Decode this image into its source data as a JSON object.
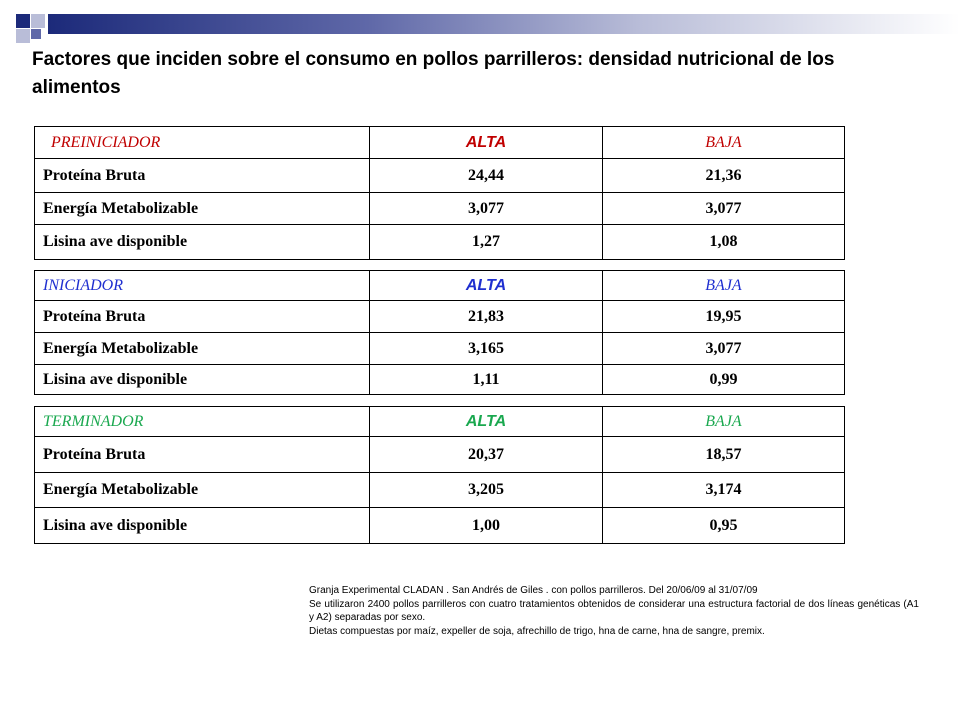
{
  "colors": {
    "deco_dark": "#1c2a7a",
    "deco_mid": "#5f68a8",
    "deco_light": "#b9bdd8",
    "preiniciador": "#c00000",
    "iniciador": "#1f2fd0",
    "terminador": "#1aa84f"
  },
  "title": "Factores que inciden sobre el consumo en pollos parrilleros: densidad nutricional de los alimentos",
  "tables": [
    {
      "stage": "PREINICIADOR",
      "alta": "ALTA",
      "baja": "BAJA",
      "rows": [
        {
          "label": "Proteína Bruta",
          "alta": "24,44",
          "baja": "21,36"
        },
        {
          "label": "Energía Metabolizable",
          "alta": "3,077",
          "baja": "3,077"
        },
        {
          "label": "Lisina ave disponible",
          "alta": "1,27",
          "baja": "1,08"
        }
      ]
    },
    {
      "stage": "INICIADOR",
      "alta": "ALTA",
      "baja": "BAJA",
      "rows": [
        {
          "label": "Proteína Bruta",
          "alta": "21,83",
          "baja": "19,95"
        },
        {
          "label": "Energía Metabolizable",
          "alta": "3,165",
          "baja": "3,077"
        },
        {
          "label": "Lisina ave disponible",
          "alta": "1,11",
          "baja": "0,99"
        }
      ]
    },
    {
      "stage": "TERMINADOR",
      "alta": "ALTA",
      "baja": "BAJA",
      "rows": [
        {
          "label": "Proteína Bruta",
          "alta": "20,37",
          "baja": "18,57"
        },
        {
          "label": "Energía Metabolizable",
          "alta": "3,205",
          "baja": "3,174"
        },
        {
          "label": "Lisina ave disponible",
          "alta": "1,00",
          "baja": "0,95"
        }
      ]
    }
  ],
  "notes": [
    "Granja Experimental CLADAN .  San Andrés de Giles .  con pollos parrilleros. Del 20/06/09 al 31/07/09",
    "Se utilizaron 2400 pollos parrilleros con cuatro tratamientos obtenidos de considerar una estructura factorial de dos líneas genéticas (A1 y A2) separadas por sexo.",
    "Dietas compuestas por maíz, expeller  de  soja, afrechillo de trigo, hna de carne, hna de sangre, premix."
  ]
}
